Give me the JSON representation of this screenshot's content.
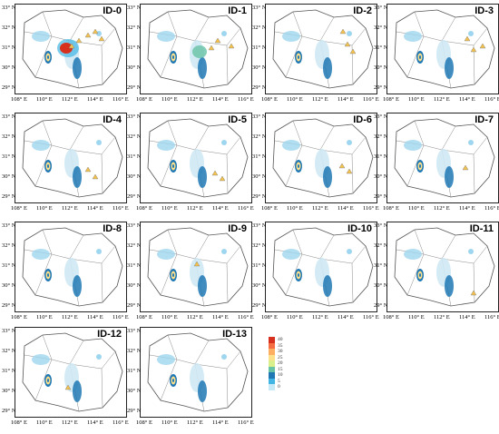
{
  "panels": [
    {
      "id": "ID-0"
    },
    {
      "id": "ID-1"
    },
    {
      "id": "ID-2"
    },
    {
      "id": "ID-3"
    },
    {
      "id": "ID-4"
    },
    {
      "id": "ID-5"
    },
    {
      "id": "ID-6"
    },
    {
      "id": "ID-7"
    },
    {
      "id": "ID-8"
    },
    {
      "id": "ID-9"
    },
    {
      "id": "ID-10"
    },
    {
      "id": "ID-11"
    },
    {
      "id": "ID-12"
    },
    {
      "id": "ID-13"
    }
  ],
  "y_ticks": [
    "33° N",
    "32° N",
    "31° N",
    "30° N",
    "29° N"
  ],
  "x_ticks": [
    "108° E",
    "110° E",
    "112° E",
    "114° E",
    "116° E"
  ],
  "colorbar": {
    "ticks": [
      "40",
      "35",
      "30",
      "25",
      "20",
      "15",
      "10",
      "5",
      "0"
    ],
    "colors": [
      "#d7301f",
      "#f46d43",
      "#fdae61",
      "#fee08b",
      "#d9ef8b",
      "#66c2a5",
      "#1f78b4",
      "#41b6e4",
      "#c6e9f7"
    ]
  }
}
